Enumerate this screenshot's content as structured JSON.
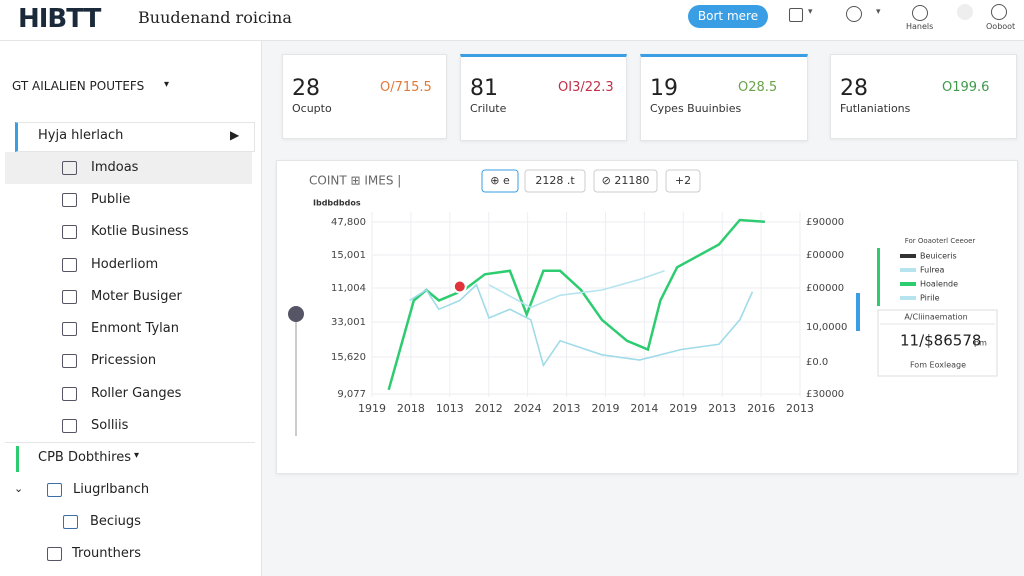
{
  "header": {
    "logo": "HIBTT",
    "title": "Buudenand roicina",
    "button": "Bort mere",
    "user1": "Hanels",
    "user2": "Ooboot"
  },
  "sidebar": {
    "section": "GT AILALIEN POUTEFS",
    "active": "Hyja hlerlach",
    "items": [
      "Imdoas",
      "Publie",
      "Kotlie Business",
      "Hoderliom",
      "Moter Busiger",
      "Enmont Tylan",
      "Pricession",
      "Roller Ganges",
      "Solliis"
    ],
    "section2": "CPB Dobthires",
    "group": "Liugrlbanch",
    "subitem": "Beciugs",
    "footer": "Trounthers"
  },
  "stats": [
    {
      "value": "28",
      "change": "O/715.5",
      "label": "Ocupto"
    },
    {
      "value": "81",
      "change": "OI3/22.3",
      "label": "Crilute"
    },
    {
      "value": "19",
      "change": "O28.5",
      "label": "Cypes Buuinbies"
    },
    {
      "value": "28",
      "change": "O199.6",
      "label": "Futlaniations"
    }
  ],
  "chart": {
    "title": "COINT ⊞ IMES |",
    "chips": [
      "⊕ e",
      "2128 .t",
      "⊘ 21180",
      "+2"
    ],
    "axis_label": "Ibdbdbdos",
    "y_labels": [
      "47,800",
      "15,001",
      "11,004",
      "33,001",
      "15,620",
      "9,077"
    ],
    "y2_labels": [
      "£90000",
      "£00000",
      "£00000",
      "10,0000",
      "£0.0",
      "£30000"
    ],
    "x_labels": [
      "1919",
      "2018",
      "1013",
      "2012",
      "2024",
      "2013",
      "2019",
      "2014",
      "2019",
      "2013",
      "2016",
      "2013"
    ],
    "xlim": [
      0,
      100
    ],
    "ylim": [
      0,
      100
    ],
    "series": [
      {
        "color": "#2ecc71",
        "x": [
          4,
          10,
          13,
          16,
          22,
          27,
          33,
          37,
          41,
          45,
          50,
          55,
          61,
          66,
          69,
          73,
          83,
          88,
          94
        ],
        "values": [
          3,
          54,
          60,
          54,
          60,
          69,
          71,
          46,
          71,
          71,
          60,
          43,
          31,
          26,
          54,
          73,
          86,
          100,
          99
        ]
      },
      {
        "color": "#9fdbe8",
        "x": [
          9,
          13,
          16,
          21,
          25,
          28,
          33,
          38,
          41,
          45,
          55,
          64,
          74,
          83,
          88,
          91
        ],
        "values": [
          54,
          60,
          49,
          54,
          63,
          44,
          49,
          43,
          17,
          31,
          23,
          20,
          26,
          29,
          43,
          59
        ]
      },
      {
        "color": "#b5e4ee",
        "x": [
          28,
          38,
          45,
          55,
          64,
          70
        ],
        "values": [
          63,
          50,
          57,
          60,
          66,
          71
        ]
      }
    ],
    "highlight": {
      "x": 21,
      "y": 62,
      "color": "#e0343a"
    },
    "legend": {
      "title": "For Ooaoterl Ceeoer",
      "items": [
        {
          "name": "Beuiceris",
          "color": "#333333"
        },
        {
          "name": "Fulrea",
          "color": "#b5e4ee"
        },
        {
          "name": "Hoalende",
          "color": "#2ecc71"
        },
        {
          "name": "Pirile",
          "color": "#b5e4ee"
        }
      ]
    },
    "tooltip": {
      "title": "A/Cliinaemation",
      "value": "11/$86578",
      "unit": "pm",
      "caption": "Fom Eoxleage"
    }
  }
}
